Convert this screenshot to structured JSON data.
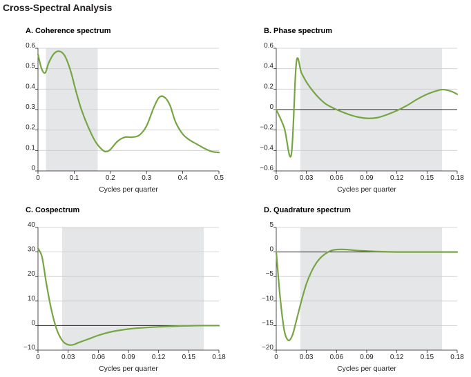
{
  "title": "Cross-Spectral Analysis",
  "colors": {
    "line": "#76a543",
    "shade": "#e5e6e8",
    "grid": "#c9cacc",
    "zero": "#231f20",
    "text": "#231f20"
  },
  "chart_data": [
    {
      "type": "line",
      "title": "A. Coherence spectrum",
      "xlabel": "Cycles per quarter",
      "ylabel": "",
      "xlim": [
        0,
        0.5
      ],
      "ylim": [
        0,
        0.6
      ],
      "xticks": [
        0,
        0.1,
        0.2,
        0.3,
        0.4,
        0.5
      ],
      "xtick_labels": [
        "0",
        "0.1",
        "0.2",
        "0.3",
        "0.4",
        "0.5"
      ],
      "yticks": [
        0,
        0.1,
        0.2,
        0.3,
        0.4,
        0.5,
        0.6
      ],
      "ytick_labels": [
        "0",
        "0.1",
        "0.2",
        "0.3",
        "0.4",
        "0.5",
        "0.6"
      ],
      "shaded_x": [
        0.022,
        0.165
      ],
      "zero_line": false,
      "x": [
        0,
        0.01,
        0.02,
        0.03,
        0.045,
        0.06,
        0.075,
        0.09,
        0.105,
        0.12,
        0.14,
        0.16,
        0.18,
        0.19,
        0.2,
        0.22,
        0.24,
        0.26,
        0.28,
        0.3,
        0.32,
        0.335,
        0.35,
        0.365,
        0.38,
        0.4,
        0.42,
        0.44,
        0.46,
        0.48,
        0.5
      ],
      "y": [
        0.57,
        0.5,
        0.48,
        0.53,
        0.575,
        0.585,
        0.56,
        0.49,
        0.39,
        0.3,
        0.21,
        0.14,
        0.1,
        0.095,
        0.105,
        0.145,
        0.165,
        0.165,
        0.175,
        0.22,
        0.31,
        0.36,
        0.36,
        0.32,
        0.24,
        0.18,
        0.15,
        0.13,
        0.11,
        0.095,
        0.09
      ]
    },
    {
      "type": "line",
      "title": "B. Phase spectrum",
      "xlabel": "Cycles per quarter",
      "ylabel": "",
      "xlim": [
        0,
        0.18
      ],
      "ylim": [
        -0.6,
        0.6
      ],
      "xticks": [
        0,
        0.03,
        0.06,
        0.09,
        0.12,
        0.15,
        0.18
      ],
      "xtick_labels": [
        "0",
        "0.03",
        "0.06",
        "0.09",
        "0.12",
        "0.15",
        "0.18"
      ],
      "yticks": [
        -0.6,
        -0.4,
        -0.2,
        0,
        0.2,
        0.4,
        0.6
      ],
      "ytick_labels": [
        "−0.6",
        "−0.4",
        "−0.2",
        "0",
        "0.2",
        "0.4",
        "0.6"
      ],
      "shaded_x": [
        0.024,
        0.165
      ],
      "zero_line": true,
      "x": [
        0,
        0.008,
        0.015,
        0.02,
        0.025,
        0.03,
        0.035,
        0.04,
        0.045,
        0.05,
        0.06,
        0.07,
        0.08,
        0.09,
        0.1,
        0.11,
        0.12,
        0.13,
        0.14,
        0.15,
        0.16,
        0.165,
        0.17,
        0.175,
        0.18
      ],
      "y": [
        0,
        -0.18,
        -0.44,
        0.46,
        0.36,
        0.27,
        0.2,
        0.14,
        0.09,
        0.05,
        0,
        -0.04,
        -0.07,
        -0.085,
        -0.08,
        -0.05,
        -0.01,
        0.04,
        0.1,
        0.15,
        0.185,
        0.195,
        0.19,
        0.175,
        0.15
      ]
    },
    {
      "type": "line",
      "title": "C. Cospectrum",
      "xlabel": "Cycles per quarter",
      "ylabel": "",
      "xlim": [
        0,
        0.18
      ],
      "ylim": [
        -10,
        40
      ],
      "xticks": [
        0,
        0.03,
        0.06,
        0.09,
        0.12,
        0.15,
        0.18
      ],
      "xtick_labels": [
        "0",
        "0.03",
        "0.06",
        "0.09",
        "0.12",
        "0.15",
        "0.18"
      ],
      "yticks": [
        -10,
        0,
        10,
        20,
        30,
        40
      ],
      "ytick_labels": [
        "−10",
        "0",
        "10",
        "20",
        "30",
        "40"
      ],
      "shaded_x": [
        0.024,
        0.165
      ],
      "zero_line": true,
      "x": [
        0,
        0.004,
        0.008,
        0.012,
        0.016,
        0.02,
        0.025,
        0.03,
        0.035,
        0.04,
        0.05,
        0.06,
        0.07,
        0.08,
        0.09,
        0.1,
        0.12,
        0.14,
        0.16,
        0.18
      ],
      "y": [
        31.5,
        28,
        18,
        9,
        2,
        -3,
        -6.5,
        -7.8,
        -7.8,
        -7,
        -5.5,
        -4,
        -2.8,
        -2,
        -1.4,
        -1,
        -0.5,
        -0.2,
        0,
        0
      ]
    },
    {
      "type": "line",
      "title": "D. Quadrature spectrum",
      "xlabel": "Cycles per quarter",
      "ylabel": "",
      "xlim": [
        0,
        0.18
      ],
      "ylim": [
        -20,
        5
      ],
      "xticks": [
        0,
        0.03,
        0.06,
        0.09,
        0.12,
        0.15,
        0.18
      ],
      "xtick_labels": [
        "0",
        "0.03",
        "0.06",
        "0.09",
        "0.12",
        "0.15",
        "0.18"
      ],
      "yticks": [
        -20,
        -15,
        -10,
        -5,
        0,
        5
      ],
      "ytick_labels": [
        "−20",
        "−15",
        "−10",
        "−5",
        "0",
        "5"
      ],
      "shaded_x": [
        0.024,
        0.165
      ],
      "zero_line": true,
      "x": [
        0,
        0.004,
        0.008,
        0.012,
        0.016,
        0.02,
        0.025,
        0.03,
        0.035,
        0.04,
        0.045,
        0.05,
        0.055,
        0.06,
        0.07,
        0.08,
        0.09,
        0.1,
        0.12,
        0.14,
        0.16,
        0.18
      ],
      "y": [
        0,
        -9.5,
        -16,
        -18,
        -17,
        -14,
        -10,
        -6.5,
        -4,
        -2.2,
        -1,
        -0.2,
        0.3,
        0.5,
        0.5,
        0.3,
        0.2,
        0.1,
        0,
        0,
        0,
        0
      ]
    }
  ]
}
